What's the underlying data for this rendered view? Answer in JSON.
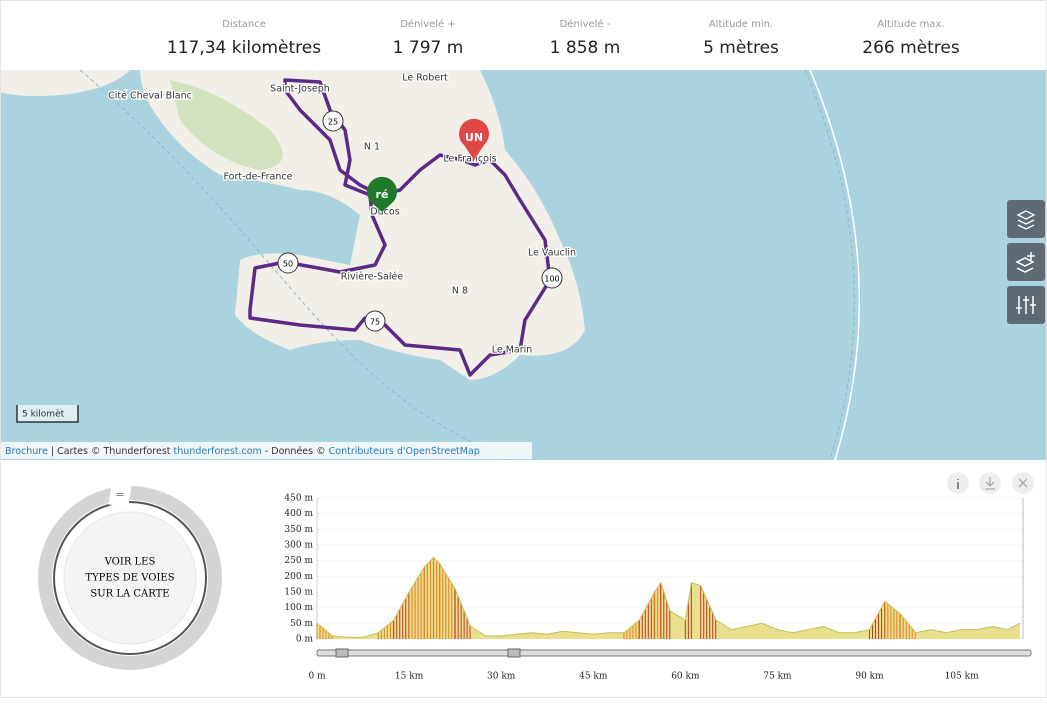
{
  "stats": [
    {
      "label": "Distance",
      "value": "117,34 kilomètres"
    },
    {
      "label": "Dénivelé +",
      "value": "1 797 m"
    },
    {
      "label": "Dénivelé -",
      "value": "1 858 m"
    },
    {
      "label": "Altitude min.",
      "value": "5 mètres"
    },
    {
      "label": "Altitude max.",
      "value": "266 mètres"
    }
  ],
  "map": {
    "places": [
      "Cité Cheval Blanc",
      "Saint-Joseph",
      "Le Robert",
      "Le François",
      "Fort-de-France",
      "Ducos",
      "Le Vauclin",
      "Rivière-Salée",
      "Le Marin"
    ],
    "roads": [
      "N 1",
      "N 8"
    ],
    "km_markers": [
      "25",
      "50",
      "75",
      "100"
    ],
    "start_marker": "ré",
    "end_marker": "UN",
    "scale": "5 kilomèt",
    "attribution": {
      "brochure": "Brochure",
      "tiles": " | Cartes © Thunderforest ",
      "tiles_link": "thunderforest.com",
      "data": " - Données © ",
      "data_link": "Contributeurs d'OpenStreetMap"
    }
  },
  "road_types": {
    "label": [
      "VOIR LES",
      "TYPES DE VOIES",
      "SUR LA CARTE"
    ],
    "handle": "="
  },
  "elevation": {
    "x": [
      0,
      2.5,
      5,
      7.5,
      10,
      12.5,
      15,
      17.5,
      19,
      20,
      22.5,
      25,
      27.5,
      30,
      32.5,
      35,
      37.5,
      40,
      42.5,
      45,
      47.5,
      50,
      52.5,
      55,
      56,
      57.5,
      60,
      61,
      62.5,
      65,
      67.5,
      70,
      72.5,
      75,
      77.5,
      80,
      82.5,
      85,
      87.5,
      90,
      92.5,
      95,
      97.5,
      100,
      102.5,
      105,
      107.5,
      110,
      112.5,
      114.5
    ],
    "values": [
      50,
      10,
      5,
      5,
      20,
      60,
      150,
      230,
      260,
      240,
      160,
      40,
      10,
      10,
      15,
      20,
      15,
      25,
      20,
      15,
      20,
      20,
      60,
      150,
      180,
      90,
      60,
      180,
      170,
      60,
      30,
      40,
      50,
      30,
      20,
      30,
      40,
      20,
      20,
      30,
      120,
      80,
      20,
      30,
      20,
      30,
      30,
      40,
      30,
      50
    ],
    "xlim": [
      0,
      115
    ],
    "ylim": [
      0,
      450
    ],
    "xticks": [
      {
        "value": 0,
        "label": "0 m"
      },
      {
        "value": 15,
        "label": "15 km"
      },
      {
        "value": 30,
        "label": "30 km"
      },
      {
        "value": 45,
        "label": "45 km"
      },
      {
        "value": 60,
        "label": "60 km"
      },
      {
        "value": 75,
        "label": "75 km"
      },
      {
        "value": 90,
        "label": "90 km"
      },
      {
        "value": 105,
        "label": "105 km"
      }
    ],
    "yticks": [
      {
        "value": 0,
        "label": "0 m"
      },
      {
        "value": 50,
        "label": "50 m"
      },
      {
        "value": 100,
        "label": "100 m"
      },
      {
        "value": 150,
        "label": "150 m"
      },
      {
        "value": 200,
        "label": "200 m"
      },
      {
        "value": 250,
        "label": "250 m"
      },
      {
        "value": 300,
        "label": "300 m"
      },
      {
        "value": 350,
        "label": "350 m"
      },
      {
        "value": 400,
        "label": "400 m"
      },
      {
        "value": 450,
        "label": "450 m"
      }
    ],
    "color": "#e8e08e",
    "line_color": "#c8bd55"
  }
}
